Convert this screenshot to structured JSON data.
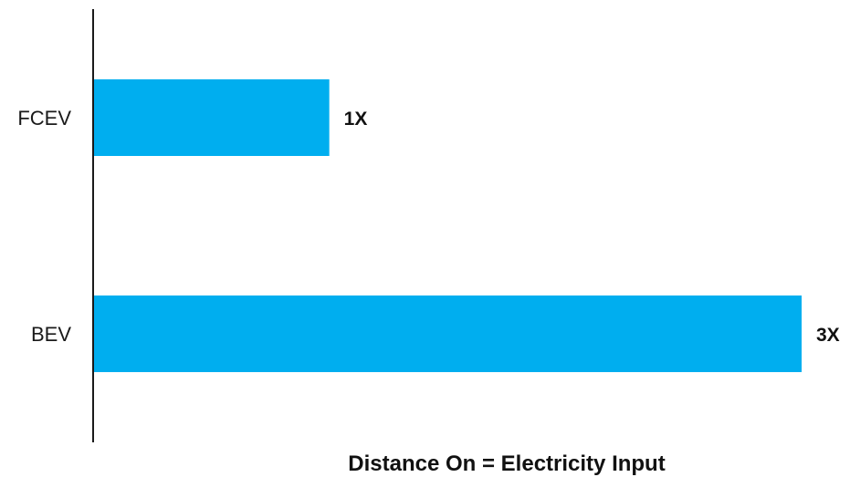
{
  "chart_data": {
    "type": "bar",
    "orientation": "horizontal",
    "categories": [
      "FCEV",
      "BEV"
    ],
    "values": [
      1,
      3
    ],
    "value_labels": [
      "1X",
      "3X"
    ],
    "xlabel": "Distance On = Electricity Input",
    "ylabel": "",
    "xlim": [
      0,
      3
    ],
    "grid": false,
    "legend": "none",
    "bar_color": "#00AEEF",
    "axis_color": "#1a1a1a"
  }
}
